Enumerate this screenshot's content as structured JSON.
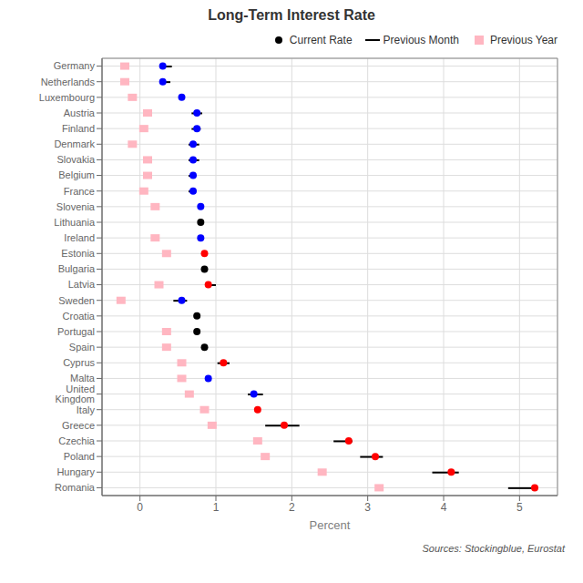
{
  "chart_data": {
    "type": "dot",
    "title": "Long-Term Interest Rate",
    "orientation": "horizontal",
    "xlabel": "Percent",
    "annotations": [
      "Sources: Stockingblue, Eurostat"
    ],
    "categories": [
      "Germany",
      "Netherlands",
      "Luxembourg",
      "Austria",
      "Finland",
      "Denmark",
      "Slovakia",
      "Belgium",
      "France",
      "Slovenia",
      "Lithuania",
      "Ireland",
      "Estonia",
      "Bulgaria",
      "Latvia",
      "Sweden",
      "Croatia",
      "Portugal",
      "Spain",
      "Cyprus",
      "Malta",
      "United Kingdom",
      "Italy",
      "Greece",
      "Czechia",
      "Poland",
      "Hungary",
      "Romania"
    ],
    "xlim": [
      -0.5,
      5.5
    ],
    "xticks": [
      0,
      1,
      2,
      3,
      4,
      5
    ],
    "grid": true,
    "legend": "upper right",
    "series": [
      {
        "name": "Current Rate",
        "type": "dot",
        "marker": "circle",
        "color": "black",
        "colors": [
          "blue",
          "blue",
          "blue",
          "blue",
          "blue",
          "blue",
          "blue",
          "blue",
          "blue",
          "blue",
          "black",
          "blue",
          "red",
          "black",
          "red",
          "blue",
          "black",
          "black",
          "black",
          "red",
          "blue",
          "blue",
          "red",
          "red",
          "red",
          "red",
          "red",
          "red"
        ],
        "values": [
          0.3,
          0.3,
          0.55,
          0.75,
          0.75,
          0.7,
          0.7,
          0.7,
          0.7,
          0.8,
          0.8,
          0.8,
          0.85,
          0.85,
          0.9,
          0.55,
          0.75,
          0.75,
          0.85,
          1.1,
          0.9,
          1.5,
          1.55,
          1.9,
          2.75,
          3.1,
          4.1,
          5.2
        ]
      },
      {
        "name": "Previous Month",
        "type": "range",
        "line_style": "solid",
        "color": "black",
        "values": [
          [
            0.28,
            0.42
          ],
          [
            0.28,
            0.4
          ],
          null,
          [
            0.68,
            0.82
          ],
          [
            0.68,
            0.8
          ],
          [
            0.64,
            0.78
          ],
          [
            0.64,
            0.78
          ],
          [
            0.64,
            0.74
          ],
          [
            0.64,
            0.74
          ],
          null,
          null,
          null,
          null,
          null,
          [
            0.9,
            1.0
          ],
          [
            0.44,
            0.62
          ],
          null,
          null,
          null,
          [
            1.02,
            1.18
          ],
          null,
          [
            1.42,
            1.62
          ],
          null,
          [
            1.65,
            2.1
          ],
          [
            2.55,
            2.8
          ],
          [
            2.9,
            3.2
          ],
          [
            3.85,
            4.2
          ],
          [
            4.85,
            5.2
          ]
        ]
      },
      {
        "name": "Previous Year",
        "type": "square",
        "marker": "square",
        "color": "#ffb6c1",
        "values": [
          -0.2,
          -0.2,
          -0.1,
          0.1,
          0.05,
          -0.1,
          0.1,
          0.1,
          0.05,
          0.2,
          null,
          0.2,
          0.35,
          null,
          0.25,
          -0.25,
          null,
          0.35,
          0.35,
          0.55,
          0.55,
          0.65,
          0.85,
          0.95,
          1.55,
          1.65,
          2.4,
          3.15
        ]
      }
    ]
  }
}
